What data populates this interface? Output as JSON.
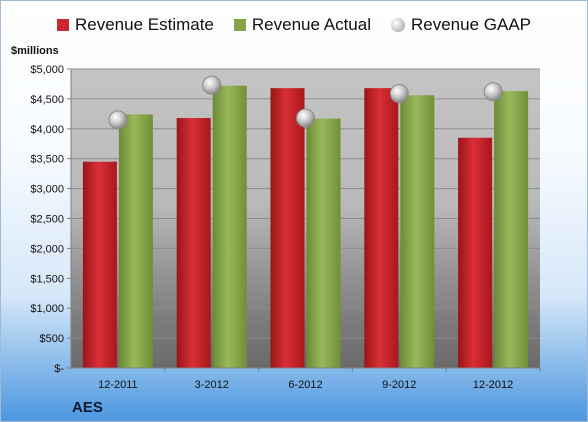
{
  "units_label": "$millions",
  "company_label": "AES",
  "legend": [
    {
      "label": "Revenue Estimate",
      "marker": "square",
      "color": "#c8282e"
    },
    {
      "label": "Revenue Actual",
      "marker": "square",
      "color": "#86a447"
    },
    {
      "label": "Revenue GAAP",
      "marker": "circle",
      "color": "#b8b8b8"
    }
  ],
  "chart_data": {
    "type": "bar",
    "title": "",
    "xlabel": "",
    "ylabel": "$millions",
    "categories": [
      "12-2011",
      "3-2012",
      "6-2012",
      "9-2012",
      "12-2012"
    ],
    "series": [
      {
        "name": "Revenue Estimate",
        "type": "bar",
        "color": "#c8282e",
        "values": [
          3450,
          4180,
          4680,
          4680,
          3850
        ]
      },
      {
        "name": "Revenue Actual",
        "type": "bar",
        "color": "#86a447",
        "values": [
          4240,
          4720,
          4170,
          4560,
          4630
        ]
      },
      {
        "name": "Revenue GAAP",
        "type": "marker",
        "color": "#b8b8b8",
        "values": [
          4150,
          4730,
          4180,
          4590,
          4620
        ]
      }
    ],
    "ylim": [
      0,
      5000
    ],
    "yticks": [
      0,
      500,
      1000,
      1500,
      2000,
      2500,
      3000,
      3500,
      4000,
      4500,
      5000
    ],
    "ytick_labels": [
      "$-",
      "$500",
      "$1,000",
      "$1,500",
      "$2,000",
      "$2,500",
      "$3,000",
      "$3,500",
      "$4,000",
      "$4,500",
      "$5,000"
    ],
    "grid": true,
    "legend_position": "top"
  }
}
